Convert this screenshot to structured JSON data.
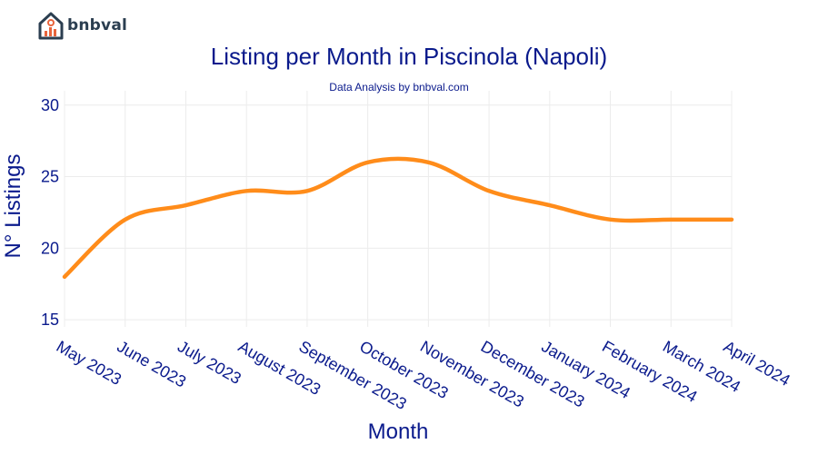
{
  "brand": {
    "name": "bnbval",
    "color": "#2b3e50",
    "accent": "#e8643c"
  },
  "chart_data": {
    "type": "line",
    "title": "Listing per Month in Piscinola (Napoli)",
    "subtitle": "Data Analysis by bnbval.com",
    "xlabel": "Month",
    "ylabel": "N° Listings",
    "categories": [
      "May 2023",
      "June 2023",
      "July 2023",
      "August 2023",
      "September 2023",
      "October 2023",
      "November 2023",
      "December 2023",
      "January 2024",
      "February 2024",
      "March 2024",
      "April 2024"
    ],
    "series": [
      {
        "values": [
          18,
          22,
          23,
          24,
          24,
          26,
          26,
          24,
          23,
          22,
          22,
          22
        ],
        "color": "#ff8c1a"
      }
    ],
    "yticks": [
      15,
      20,
      25,
      30
    ],
    "ylim": [
      14.5,
      31
    ],
    "grid": true,
    "legend": "none"
  }
}
